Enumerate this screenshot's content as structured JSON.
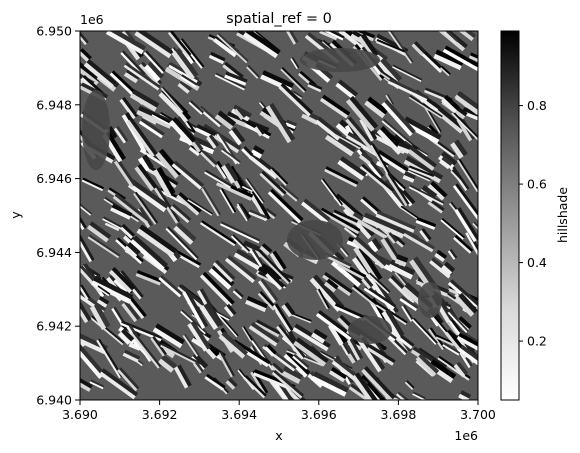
{
  "chart_data": {
    "type": "heatmap",
    "title": "spatial_ref = 0",
    "xlabel": "x",
    "ylabel": "y",
    "x_offset_label": "1e6",
    "y_offset_label": "1e6",
    "xlim": [
      3.69,
      3.7
    ],
    "ylim": [
      6.94,
      6.95
    ],
    "x_ticks": [
      3.69,
      3.692,
      3.694,
      3.696,
      3.698,
      3.7
    ],
    "x_tick_labels": [
      "3.690",
      "3.692",
      "3.694",
      "3.696",
      "3.698",
      "3.700"
    ],
    "y_ticks": [
      6.94,
      6.942,
      6.944,
      6.946,
      6.948,
      6.95
    ],
    "y_tick_labels": [
      "6.940",
      "6.942",
      "6.944",
      "6.946",
      "6.948",
      "6.950"
    ],
    "colorbar": {
      "label": "hillshade",
      "range": [
        0.05,
        0.99
      ],
      "ticks": [
        0.2,
        0.4,
        0.6,
        0.8
      ],
      "tick_labels": [
        "0.2",
        "0.4",
        "0.6",
        "0.8"
      ],
      "colormap": "Greys",
      "color_low": "#ffffff",
      "color_high": "#000000"
    },
    "flat_area_value": 0.72,
    "grid": false,
    "legend": "none"
  }
}
